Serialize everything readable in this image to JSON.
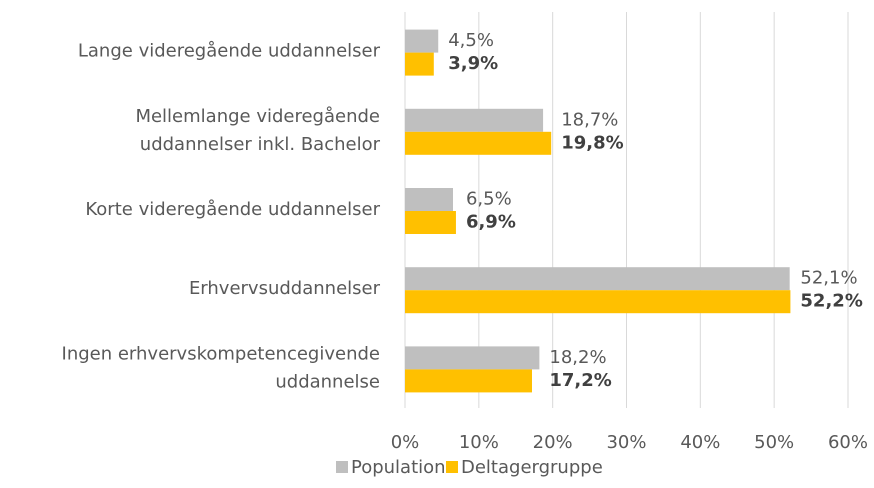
{
  "chart_data": {
    "type": "barh",
    "categories": [
      [
        "Lange videregående uddannelser"
      ],
      [
        "Mellemlange videregående",
        "uddannelser inkl. Bachelor"
      ],
      [
        "Korte videregående uddannelser"
      ],
      [
        "Erhvervsuddannelser"
      ],
      [
        "Ingen erhvervskompetencegivende",
        "uddannelse"
      ]
    ],
    "series": [
      {
        "name": "Population",
        "color": "#bfbfbf",
        "values": [
          4.5,
          18.7,
          6.5,
          52.1,
          18.2
        ],
        "value_labels": [
          "4,5%",
          "18,7%",
          "6,5%",
          "52,1%",
          "18,2%"
        ]
      },
      {
        "name": "Deltagergruppe",
        "color": "#ffc000",
        "values": [
          3.9,
          19.8,
          6.9,
          52.2,
          17.2
        ],
        "value_labels": [
          "3,9%",
          "19,8%",
          "6,9%",
          "52,2%",
          "17,2%"
        ]
      }
    ],
    "xlim": [
      0,
      60
    ],
    "xticks": [
      {
        "value": 0,
        "label": "0%"
      },
      {
        "value": 10,
        "label": "10%"
      },
      {
        "value": 20,
        "label": "20%"
      },
      {
        "value": 30,
        "label": "30%"
      },
      {
        "value": 40,
        "label": "40%"
      },
      {
        "value": 50,
        "label": "50%"
      },
      {
        "value": 60,
        "label": "60%"
      }
    ],
    "grid": true,
    "legend": "bottom"
  }
}
